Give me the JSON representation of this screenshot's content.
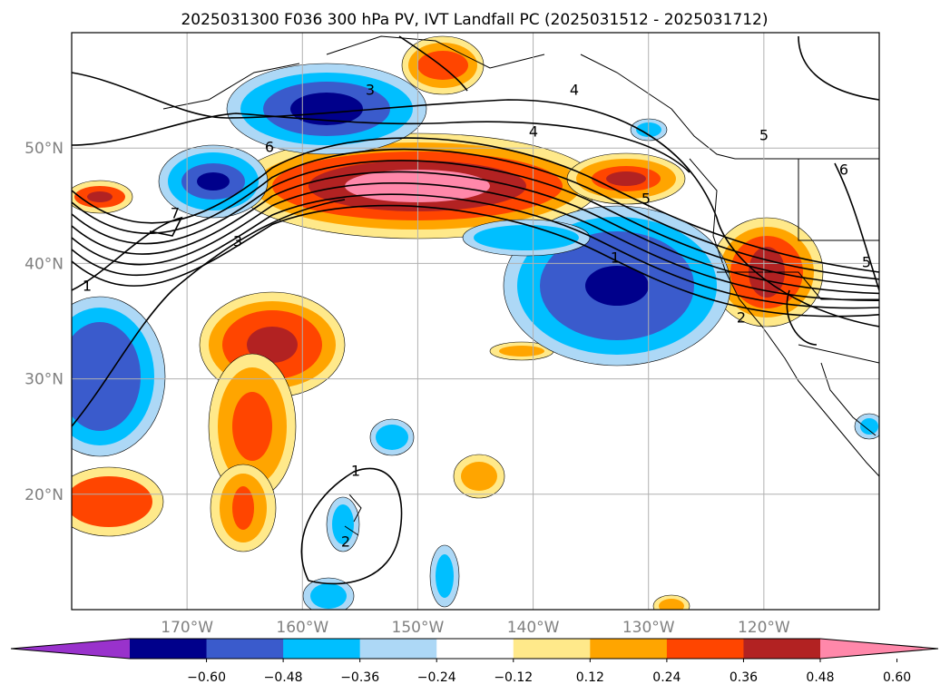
{
  "chart_data": {
    "type": "map-contour",
    "title": "2025031300 F036 300 hPa PV, IVT Landfall PC (2025031512 - 2025031712)",
    "lon_range": [
      -180,
      -110
    ],
    "lat_range": [
      10,
      60
    ],
    "xticks": [
      -170,
      -160,
      -150,
      -140,
      -130,
      -120
    ],
    "xtick_labels": [
      "170°W",
      "160°W",
      "150°W",
      "140°W",
      "130°W",
      "120°W"
    ],
    "yticks": [
      20,
      30,
      40,
      50
    ],
    "ytick_labels": [
      "20°N",
      "30°N",
      "40°N",
      "50°N"
    ],
    "grid": true,
    "colorbar": {
      "levels": [
        -0.6,
        -0.48,
        -0.36,
        -0.24,
        -0.12,
        0.12,
        0.24,
        0.36,
        0.48,
        0.6
      ],
      "tick_labels": [
        "−0.60",
        "−0.48",
        "−0.36",
        "−0.24",
        "−0.12",
        "0.12",
        "0.24",
        "0.36",
        "0.48",
        "0.60"
      ],
      "colors": [
        "#9932cc",
        "#00008b",
        "#3a5bcc",
        "#00bfff",
        "#add8f6",
        "#ffffff",
        "#ffe98a",
        "#ffa500",
        "#ff4500",
        "#b22222",
        "#ff88aa"
      ],
      "extend": "both"
    },
    "shaded_features": [
      {
        "name": "pv-maximum-north-pacific",
        "level": 0.6,
        "center": [
          -149,
          47.5
        ]
      },
      {
        "name": "pv-maximum-gulf-alaska",
        "level": 0.36,
        "center": [
          -144,
          57
        ]
      },
      {
        "name": "pv-maximum-pnw",
        "level": 0.48,
        "center": [
          -131,
          48
        ]
      },
      {
        "name": "pv-maximum-california",
        "level": 0.48,
        "center": [
          -119,
          40
        ]
      },
      {
        "name": "pv-maximum-central",
        "level": 0.48,
        "center": [
          -163,
          34
        ]
      },
      {
        "name": "pv-maximum-central-south",
        "level": 0.36,
        "center": [
          -166,
          19
        ]
      },
      {
        "name": "pv-maximum-west",
        "level": 0.48,
        "center": [
          -178,
          46
        ]
      },
      {
        "name": "pv-minimum-aleutian",
        "level": -0.6,
        "center": [
          -156,
          53
        ]
      },
      {
        "name": "pv-minimum-ne-pacific",
        "level": -0.48,
        "center": [
          -131,
          37
        ]
      },
      {
        "name": "pv-minimum-sw",
        "level": -0.48,
        "center": [
          -177,
          28
        ]
      }
    ],
    "contour_labels": [
      "3",
      "4",
      "4",
      "5",
      "5",
      "6",
      "6",
      "7",
      "3",
      "1",
      "1",
      "2",
      "1",
      "2",
      "5"
    ],
    "colors": {
      "grid": "#b0b0b0",
      "contour": "#000000",
      "coast": "#000000",
      "tick_text": "#808080"
    }
  }
}
